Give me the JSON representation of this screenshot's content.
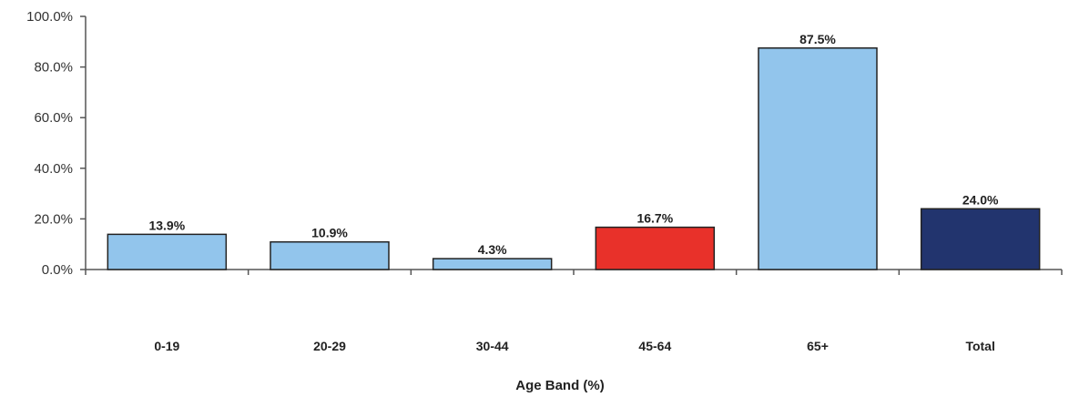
{
  "chart_data": {
    "type": "bar",
    "title": "",
    "xlabel": "Age  Band (%)",
    "ylabel": "",
    "categories": [
      "0-19",
      "20-29",
      "30-44",
      "45-64",
      "65+",
      "Total"
    ],
    "values": [
      13.9,
      10.9,
      4.3,
      16.7,
      87.5,
      24.0
    ],
    "data_labels": [
      "13.9%",
      "10.9%",
      "4.3%",
      "16.7%",
      "87.5%",
      "24.0%"
    ],
    "bar_colors": [
      "#92C5EC",
      "#92C5EC",
      "#92C5EC",
      "#E8312A",
      "#92C5EC",
      "#22346E"
    ],
    "ylim": [
      0,
      100
    ],
    "yticks": [
      0,
      20,
      40,
      60,
      80,
      100
    ],
    "ytick_labels": [
      "0.0%",
      "20.0%",
      "40.0%",
      "60.0%",
      "80.0%",
      "100.0%"
    ],
    "grid": false,
    "legend": "none",
    "axis_color": "#555555",
    "bar_outline_color": "#222222"
  }
}
